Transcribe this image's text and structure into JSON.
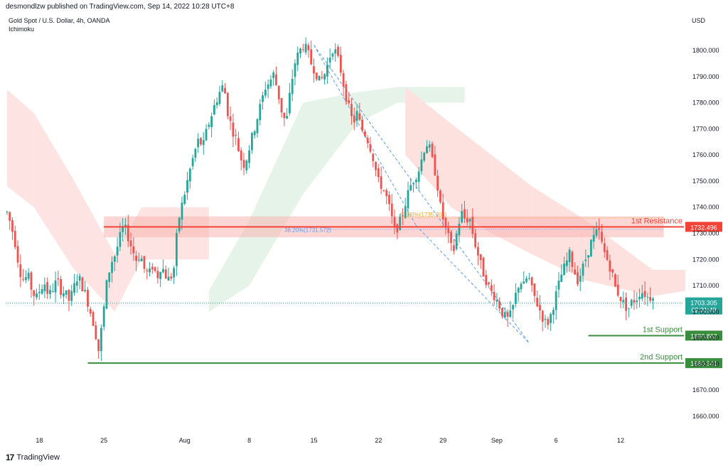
{
  "header": {
    "published_line": "desmondlzw published on TradingView.com, Sep 14, 2022 10:28 UTC+8",
    "symbol_line": "Gold Spot / U.S. Dollar, 4h, OANDA",
    "indicator": "Ichimoku",
    "currency": "USD"
  },
  "footer": {
    "brand": "TradingView",
    "logo_icon": "tradingview-logo-icon"
  },
  "colors": {
    "bull": "#26a69a",
    "bear": "#ef5350",
    "resistance": "#f44336",
    "support": "#388e3c",
    "cloud_bull": "#e3f2e6",
    "cloud_bear": "#fde1df",
    "fib": "#5b9cf6",
    "price_tag": "#26a69a"
  },
  "chart_data": {
    "type": "candlestick",
    "y_axis": {
      "ticks": [
        1660,
        1670,
        1680,
        1690,
        1700,
        1710,
        1720,
        1730,
        1740,
        1750,
        1760,
        1770,
        1780,
        1790,
        1800
      ],
      "tick_labels": [
        "1660.000",
        "1670.000",
        "1680.000",
        "1690.000",
        "1700.000",
        "1710.000",
        "1720.000",
        "1730.000",
        "1740.000",
        "1750.000",
        "1760.000",
        "1770.000",
        "1780.000",
        "1790.000",
        "1800.000"
      ],
      "range": [
        1655,
        1812
      ]
    },
    "x_axis": {
      "labels": [
        "18",
        "25",
        "Aug",
        "8",
        "15",
        "22",
        "29",
        "Sep",
        "6",
        "12"
      ],
      "bar_index_of_labels": [
        12,
        36,
        66,
        90,
        114,
        138,
        162,
        182,
        204,
        228
      ],
      "total_bars": 252
    },
    "levels": [
      {
        "name": "resistance",
        "label": "1st Resistance",
        "value": 1732.496,
        "tag": "1732.496"
      },
      {
        "name": "support-1",
        "label": "1st Support",
        "value": 1690.862,
        "tag": "1690.862"
      },
      {
        "name": "support-2",
        "label": "2nd Support",
        "value": 1680.341,
        "tag": "1680.341"
      }
    ],
    "current_price": {
      "value": 1703.305,
      "tag": "1703.305",
      "countdown": "02:31:49"
    },
    "fib_label": "38.20%(1731.572)",
    "fib_label_2": "61.80%(1735.904)",
    "anchor_path": [
      1738,
      1733,
      1726,
      1716,
      1712,
      1714,
      1708,
      1705,
      1709,
      1711,
      1706,
      1709,
      1712,
      1708,
      1707,
      1704,
      1709,
      1714,
      1710,
      1706,
      1700,
      1694,
      1685,
      1698,
      1712,
      1719,
      1722,
      1728,
      1733,
      1729,
      1724,
      1720,
      1722,
      1716,
      1714,
      1718,
      1713,
      1718,
      1714,
      1712,
      1716,
      1734,
      1741,
      1748,
      1755,
      1761,
      1766,
      1763,
      1770,
      1775,
      1780,
      1784,
      1787,
      1776,
      1770,
      1766,
      1759,
      1756,
      1762,
      1768,
      1774,
      1780,
      1786,
      1788,
      1791,
      1784,
      1776,
      1772,
      1785,
      1795,
      1799,
      1802,
      1800,
      1795,
      1792,
      1788,
      1790,
      1795,
      1801,
      1799,
      1793,
      1785,
      1778,
      1772,
      1776,
      1770,
      1768,
      1764,
      1758,
      1750,
      1748,
      1744,
      1738,
      1731,
      1733,
      1738,
      1744,
      1749,
      1752,
      1755,
      1762,
      1765,
      1758,
      1752,
      1740,
      1733,
      1728,
      1722,
      1731,
      1738,
      1735,
      1736,
      1728,
      1722,
      1716,
      1712,
      1708,
      1706,
      1703,
      1699,
      1697,
      1699,
      1706,
      1712,
      1710,
      1714,
      1708,
      1704,
      1700,
      1696,
      1696,
      1702,
      1708,
      1714,
      1718,
      1722,
      1716,
      1712,
      1716,
      1721,
      1726,
      1729,
      1731,
      1724,
      1720,
      1716,
      1709,
      1706,
      1703,
      1701,
      1704,
      1705,
      1708,
      1707,
      1705,
      1707
    ],
    "cloud": {
      "bear_segments": [
        [
          0,
          1785,
          1748
        ],
        [
          10,
          1776,
          1740
        ],
        [
          25,
          1750,
          1716
        ],
        [
          40,
          1722,
          1700
        ],
        [
          50,
          1740,
          1720
        ]
      ],
      "bull_segments": [
        [
          75,
          1708,
          1700
        ],
        [
          90,
          1735,
          1710
        ],
        [
          110,
          1780,
          1745
        ],
        [
          130,
          1784,
          1772
        ],
        [
          145,
          1786,
          1780
        ]
      ]
    }
  }
}
